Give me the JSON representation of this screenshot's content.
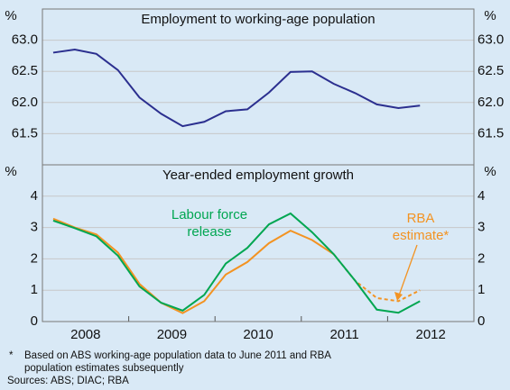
{
  "chart_data": [
    {
      "type": "line",
      "title": "Employment to working-age population",
      "axis_unit": "%",
      "x": [
        2008.125,
        2008.375,
        2008.625,
        2008.875,
        2009.125,
        2009.375,
        2009.625,
        2009.875,
        2010.125,
        2010.375,
        2010.625,
        2010.875,
        2011.125,
        2011.375,
        2011.625,
        2011.875,
        2012.125,
        2012.375
      ],
      "series": [
        {
          "name": "Employment to working-age population",
          "color": "#2b2f8f",
          "values": [
            62.8,
            62.85,
            62.78,
            62.52,
            62.08,
            61.82,
            61.62,
            61.69,
            61.86,
            61.89,
            62.16,
            62.49,
            62.5,
            62.3,
            62.15,
            61.97,
            61.91,
            61.95
          ]
        }
      ],
      "xlim": [
        2008,
        2013
      ],
      "ylim": [
        61,
        63.5
      ],
      "yticks": [
        {
          "value": 61.5,
          "label": "61.5"
        },
        {
          "value": 62,
          "label": "62.0"
        },
        {
          "value": 62.5,
          "label": "62.5"
        },
        {
          "value": 63,
          "label": "63.0"
        }
      ],
      "grid": true
    },
    {
      "type": "line",
      "title": "Year-ended employment growth",
      "axis_unit": "%",
      "x": [
        2008.125,
        2008.375,
        2008.625,
        2008.875,
        2009.125,
        2009.375,
        2009.625,
        2009.875,
        2010.125,
        2010.375,
        2010.625,
        2010.875,
        2011.125,
        2011.375,
        2011.625,
        2011.875,
        2012.125,
        2012.375
      ],
      "series": [
        {
          "name": "RBA estimate*",
          "color": "#f39322",
          "dashed_from": 13,
          "values": [
            3.28,
            3.0,
            2.78,
            2.2,
            1.2,
            0.6,
            0.27,
            0.65,
            1.5,
            1.9,
            2.5,
            2.9,
            2.6,
            2.15,
            1.3,
            0.75,
            0.65,
            1.0
          ]
        },
        {
          "name": "Labour force release",
          "color": "#00a651",
          "values": [
            3.22,
            2.98,
            2.72,
            2.1,
            1.12,
            0.6,
            0.35,
            0.85,
            1.85,
            2.35,
            3.1,
            3.45,
            2.85,
            2.15,
            1.3,
            0.38,
            0.28,
            0.65
          ]
        }
      ],
      "annotations": [
        {
          "lines": [
            "Labour force",
            "release"
          ],
          "color": "#00a651"
        },
        {
          "lines": [
            "RBA",
            "estimate*"
          ],
          "color": "#f39322"
        }
      ],
      "xlim": [
        2008,
        2013
      ],
      "xticks": [
        2008,
        2009,
        2010,
        2011,
        2012,
        2013
      ],
      "year_labels": [
        {
          "value": 2008.5,
          "label": "2008"
        },
        {
          "value": 2009.5,
          "label": "2009"
        },
        {
          "value": 2010.5,
          "label": "2010"
        },
        {
          "value": 2011.5,
          "label": "2011"
        },
        {
          "value": 2012.5,
          "label": "2012"
        }
      ],
      "ylim": [
        0,
        5
      ],
      "yticks": [
        0,
        1,
        2,
        3,
        4
      ],
      "grid": true
    }
  ],
  "footnotes": {
    "marker": "*",
    "lines": [
      "Based on ABS working-age population data to June 2011 and RBA",
      "population estimates subsequently"
    ],
    "sources": "Sources: ABS; DIAC; RBA"
  }
}
